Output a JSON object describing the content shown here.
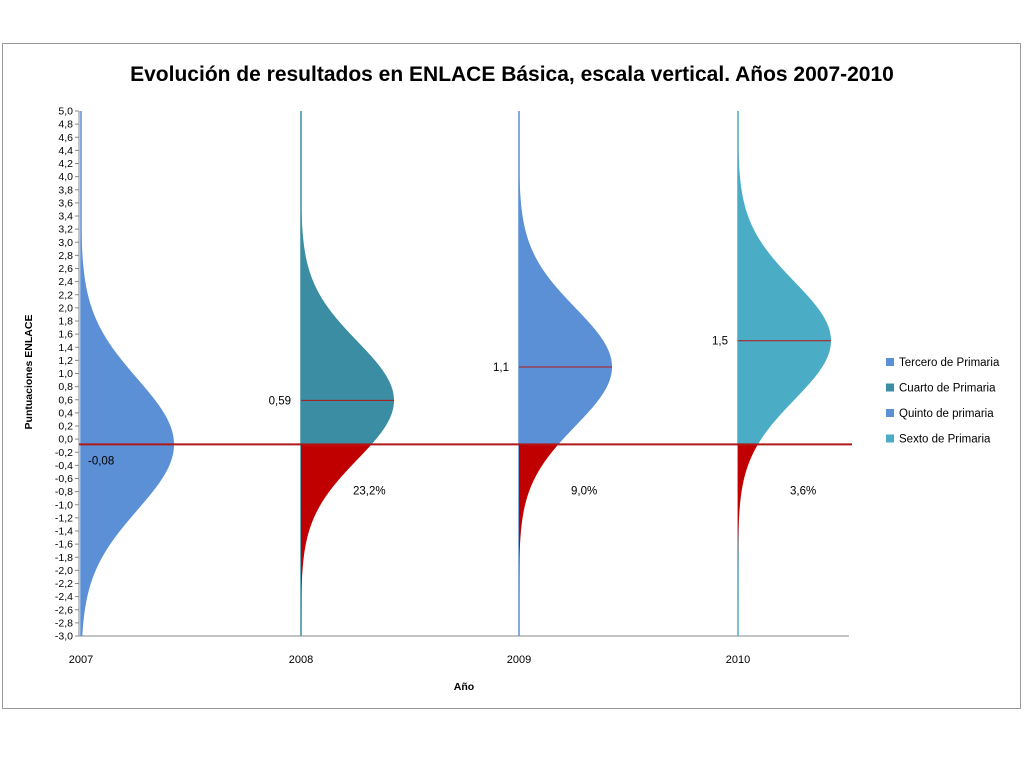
{
  "chart_data": {
    "type": "area",
    "title": "Evolución de resultados en ENLACE Básica, escala vertical. Años 2007-2010",
    "xlabel": "Año",
    "ylabel": "Puntuaciones ENLACE",
    "ylim": [
      -3.0,
      5.0
    ],
    "y_ticks": [
      "5,0",
      "4,8",
      "4,6",
      "4,4",
      "4,2",
      "4,0",
      "3,8",
      "3,6",
      "3,4",
      "3,2",
      "3,0",
      "2,8",
      "2,6",
      "2,4",
      "2,2",
      "2,0",
      "1,8",
      "1,6",
      "1,4",
      "1,2",
      "1,0",
      "0,8",
      "0,6",
      "0,4",
      "0,2",
      "0,0",
      "-0,2",
      "-0,4",
      "-0,6",
      "-0,8",
      "-1,0",
      "-1,2",
      "-1,4",
      "-1,6",
      "-1,8",
      "-2,0",
      "-2,2",
      "-2,4",
      "-2,6",
      "-2,8",
      "-3,0"
    ],
    "categories": [
      "2007",
      "2008",
      "2009",
      "2010"
    ],
    "reference_line": -0.08,
    "grid": false,
    "legend_position": "right",
    "series": [
      {
        "name": "Tercero de Primaria",
        "year": "2007",
        "mean": -0.08,
        "sd": 1.0,
        "mean_label": "-0,08",
        "pct_label": "",
        "color": "#5b8fd6"
      },
      {
        "name": "Cuarto de Primaria",
        "year": "2008",
        "mean": 0.59,
        "sd": 0.9,
        "mean_label": "0,59",
        "pct_label": "23,2%",
        "color": "#3a8da3"
      },
      {
        "name": "Quinto de primaria",
        "year": "2009",
        "mean": 1.1,
        "sd": 0.9,
        "mean_label": "1,1",
        "pct_label": "9,0%",
        "color": "#5b8fd6"
      },
      {
        "name": "Sexto de Primaria",
        "year": "2010",
        "mean": 1.5,
        "sd": 0.9,
        "mean_label": "1,5",
        "pct_label": "3,6%",
        "color": "#4bacc6"
      }
    ],
    "below_color": "#c00000",
    "line_color": "#b01818"
  }
}
